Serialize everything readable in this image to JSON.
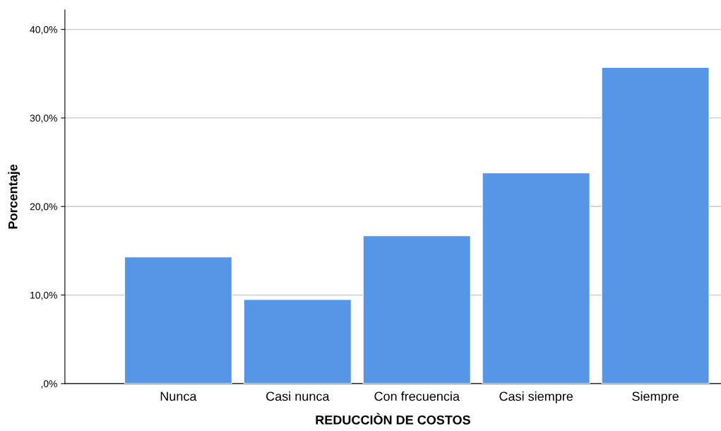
{
  "chart_data": {
    "type": "bar",
    "xlabel": "REDUCCIÒN DE COSTOS",
    "ylabel": "Porcentaje",
    "categories": [
      "Nunca",
      "Casi nunca",
      "Con frecuencia",
      "Casi siempre",
      "Siempre"
    ],
    "values": [
      14.3,
      9.5,
      16.7,
      23.8,
      35.7
    ],
    "color": "#5596e6",
    "ylim": [
      0,
      42.2
    ],
    "yticks": [
      {
        "value": 0,
        "label": ",0%"
      },
      {
        "value": 10,
        "label": "10,0%"
      },
      {
        "value": 20,
        "label": "20,0%"
      },
      {
        "value": 30,
        "label": "30,0%"
      },
      {
        "value": 40,
        "label": "40,0%"
      }
    ],
    "grid": "y"
  }
}
